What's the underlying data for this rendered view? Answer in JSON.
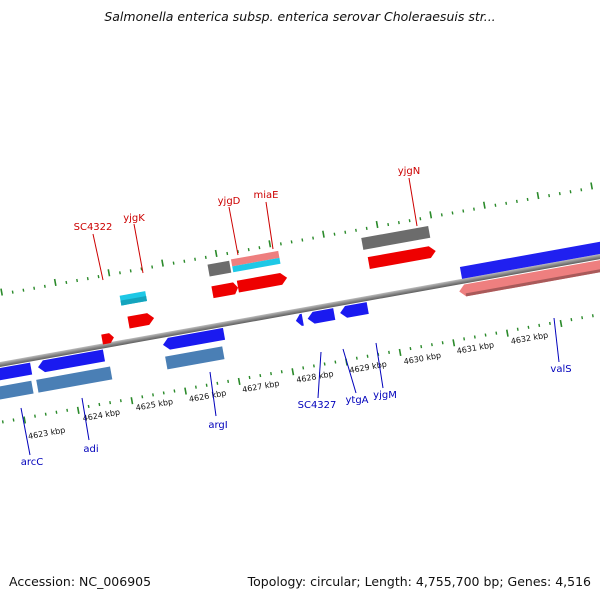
{
  "header": {
    "title": "Salmonella enterica subsp. enterica serovar Choleraesuis str..."
  },
  "footer": {
    "accession": "Accession: NC_006905",
    "summary": "Topology: circular; Length: 4,755,700 bp; Genes: 4,516"
  },
  "colors": {
    "backbone": "#7f7f7f",
    "tick": "#2a8a2a",
    "top_label": "#cc0000",
    "bottom_label": "#0000bb",
    "red": "#ee0000",
    "pink": "#ee7f7f",
    "gray": "#6c6c6c",
    "cyan": "#1ec8e6",
    "blue": "#1a1af0",
    "steel": "#4a7fb5"
  },
  "scale_labels": [
    {
      "text": "4623 kbp",
      "kbp": 4623
    },
    {
      "text": "4624 kbp",
      "kbp": 4624
    },
    {
      "text": "4625 kbp",
      "kbp": 4625
    },
    {
      "text": "4626 kbp",
      "kbp": 4626
    },
    {
      "text": "4627 kbp",
      "kbp": 4627
    },
    {
      "text": "4628 kbp",
      "kbp": 4628
    },
    {
      "text": "4629 kbp",
      "kbp": 4629
    },
    {
      "text": "4630 kbp",
      "kbp": 4630
    },
    {
      "text": "4631 kbp",
      "kbp": 4631
    },
    {
      "text": "4632 kbp",
      "kbp": 4632
    }
  ],
  "forward_gene_labels": [
    {
      "text": "SC4322"
    },
    {
      "text": "yjgK"
    },
    {
      "text": "yjgD"
    },
    {
      "text": "miaE"
    },
    {
      "text": "yjgN"
    }
  ],
  "reverse_gene_labels": [
    {
      "text": "arcC"
    },
    {
      "text": "adi"
    },
    {
      "text": "argI"
    },
    {
      "text": "SC4327"
    },
    {
      "text": "ytgA"
    },
    {
      "text": "yjgM"
    },
    {
      "text": "valS"
    }
  ]
}
